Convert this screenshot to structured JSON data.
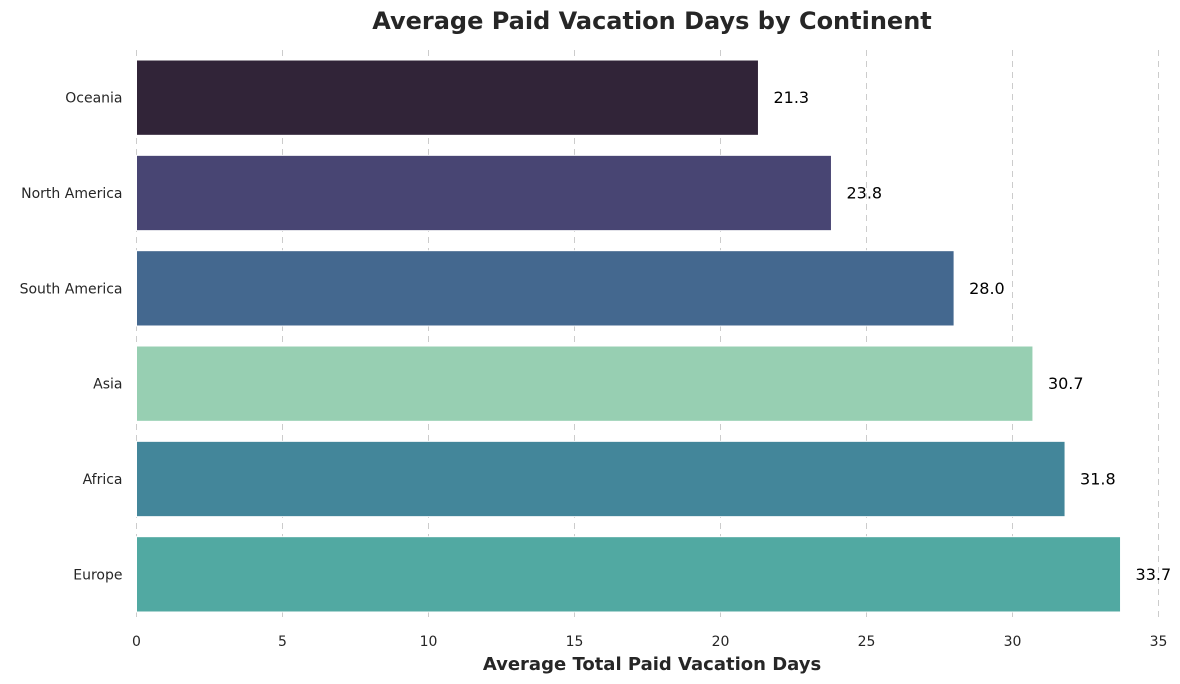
{
  "chart_data": {
    "type": "bar",
    "orientation": "horizontal",
    "title": "Average Paid Vacation Days by Continent",
    "xlabel": "Average Total Paid Vacation Days",
    "ylabel": "",
    "categories": [
      "Oceania",
      "North America",
      "South America",
      "Asia",
      "Africa",
      "Europe"
    ],
    "values": [
      21.3,
      23.8,
      28.0,
      30.7,
      31.8,
      33.7
    ],
    "value_labels": [
      "21.3",
      "23.8",
      "28.0",
      "30.7",
      "31.8",
      "33.7"
    ],
    "colors": [
      "#312438",
      "#484573",
      "#44688f",
      "#97cfb2",
      "#43869a",
      "#51a9a2"
    ],
    "xlim": [
      0,
      35
    ],
    "xticks": [
      0,
      5,
      10,
      15,
      20,
      25,
      30,
      35
    ],
    "grid": "x-dashed",
    "legend": "none"
  }
}
